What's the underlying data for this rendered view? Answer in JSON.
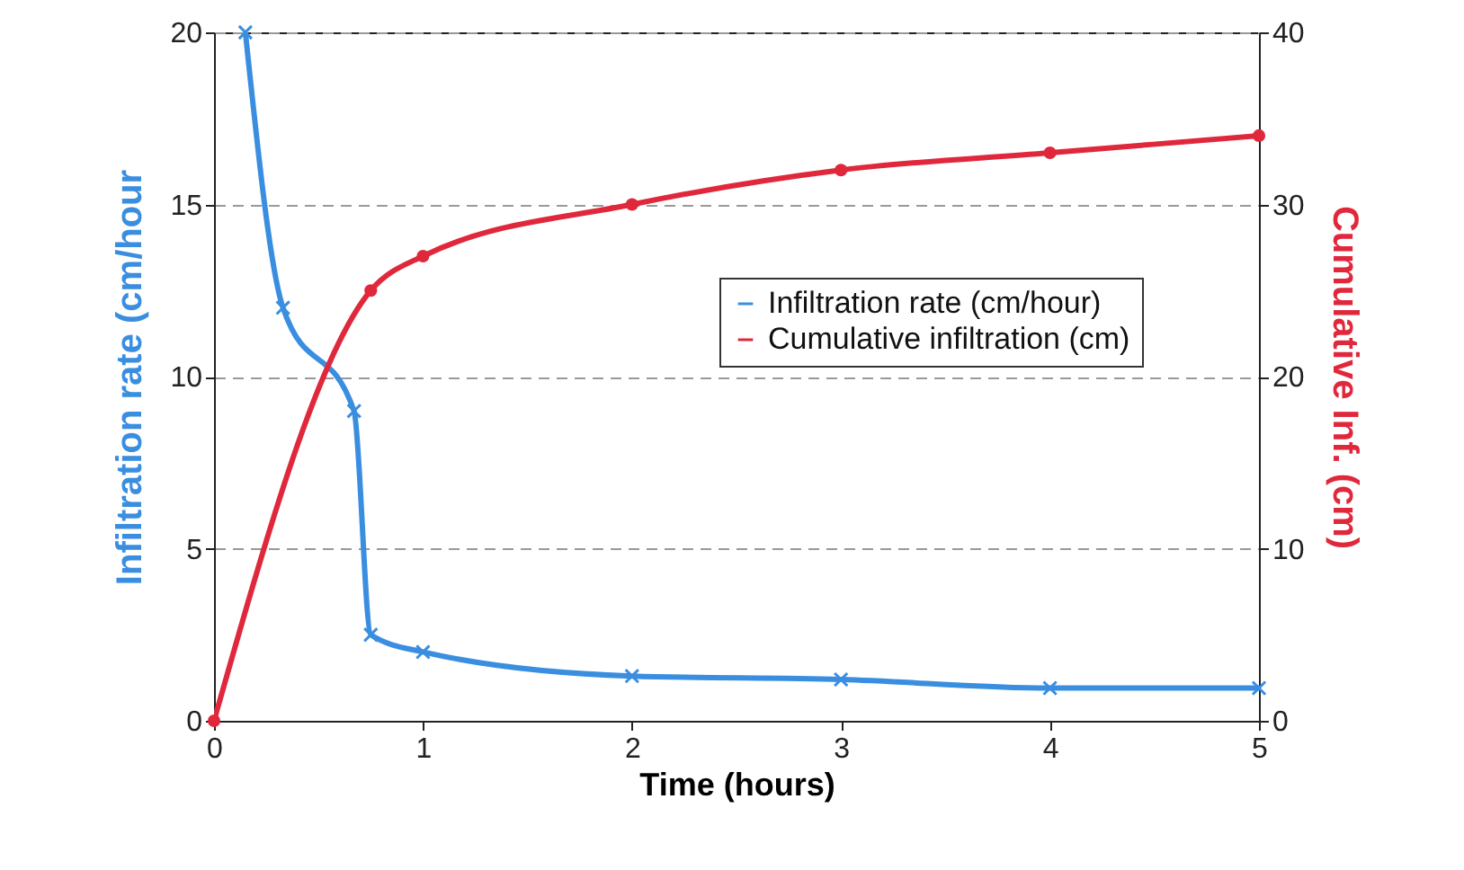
{
  "chart_data": {
    "type": "line",
    "xlabel": "Time (hours)",
    "ylabel": "Infiltration rate (cm/hour",
    "y2label": "Cumulative Inf. (cm)",
    "xlim": [
      0,
      5
    ],
    "xticks": [
      0,
      1,
      2,
      3,
      4,
      5
    ],
    "ylim": [
      0,
      20
    ],
    "yticks": [
      0,
      5,
      10,
      15,
      20
    ],
    "y2lim": [
      0,
      40
    ],
    "y2ticks": [
      0,
      10,
      20,
      30,
      40
    ],
    "grid": "y",
    "legend": "right",
    "line_style": "solid",
    "series": [
      {
        "name": "Infiltration rate (cm/hour)",
        "color": "#3a8ee0",
        "marker": "cross",
        "x": [
          0.15,
          0.33,
          0.67,
          0.75,
          1,
          2,
          3,
          4,
          5
        ],
        "values": [
          20,
          12,
          9,
          2.5,
          2,
          1.3,
          1.2,
          0.95,
          0.95
        ]
      },
      {
        "name": "Cumulative infiltration (cm)",
        "color": "#e0283c",
        "marker": "circle",
        "axis": "y2",
        "x": [
          0,
          0.75,
          1,
          2,
          3,
          4,
          5
        ],
        "values": [
          0,
          25,
          27,
          30,
          32,
          33,
          34
        ]
      }
    ]
  }
}
